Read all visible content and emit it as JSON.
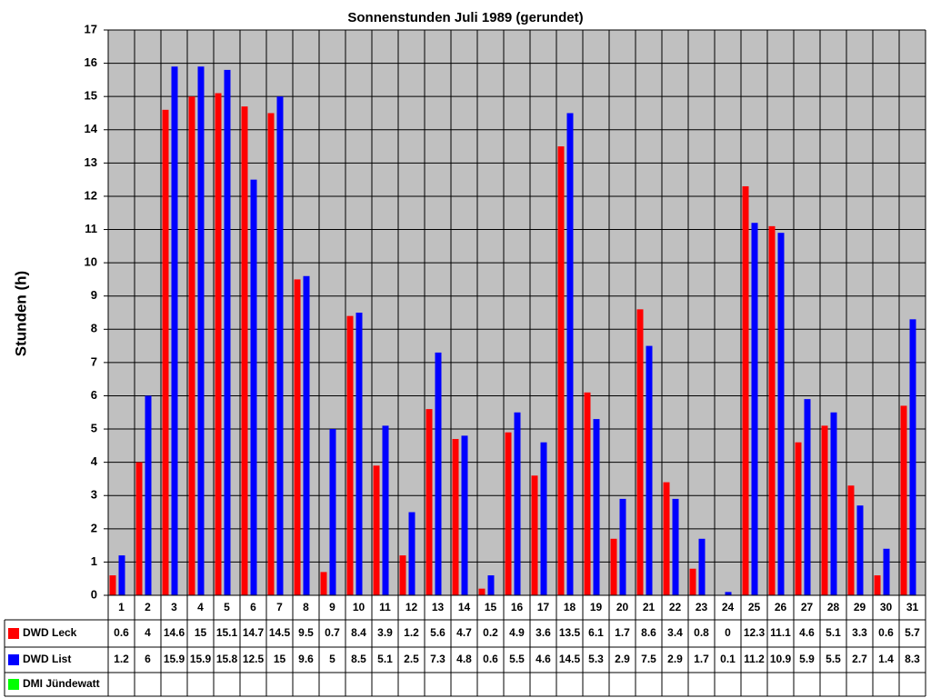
{
  "chart_data": {
    "type": "bar",
    "title": "Sonnenstunden Juli 1989 (gerundet)",
    "y_label": "Stunden (h)",
    "categories": [
      "1",
      "2",
      "3",
      "4",
      "5",
      "6",
      "7",
      "8",
      "9",
      "10",
      "11",
      "12",
      "13",
      "14",
      "15",
      "16",
      "17",
      "18",
      "19",
      "20",
      "21",
      "22",
      "23",
      "24",
      "25",
      "26",
      "27",
      "28",
      "29",
      "30",
      "31"
    ],
    "series": [
      {
        "name": "DWD Leck",
        "color": "#ff0000",
        "values": [
          0.6,
          4,
          14.6,
          15,
          15.1,
          14.7,
          14.5,
          9.5,
          0.7,
          8.4,
          3.9,
          1.2,
          5.6,
          4.7,
          0.2,
          4.9,
          3.6,
          13.5,
          6.1,
          1.7,
          8.6,
          3.4,
          0.8,
          0,
          12.3,
          11.1,
          4.6,
          5.1,
          3.3,
          0.6,
          5.7
        ]
      },
      {
        "name": "DWD List",
        "color": "#0000ff",
        "values": [
          1.2,
          6,
          15.9,
          15.9,
          15.8,
          12.5,
          15,
          9.6,
          5,
          8.5,
          5.1,
          2.5,
          7.3,
          4.8,
          0.6,
          5.5,
          4.6,
          14.5,
          5.3,
          2.9,
          7.5,
          2.9,
          1.7,
          0.1,
          11.2,
          10.9,
          5.9,
          5.5,
          2.7,
          1.4,
          8.3
        ]
      },
      {
        "name": "DMI Jündewatt",
        "color": "#00ff00",
        "values": [
          null,
          null,
          null,
          null,
          null,
          null,
          null,
          null,
          null,
          null,
          null,
          null,
          null,
          null,
          null,
          null,
          null,
          null,
          null,
          null,
          null,
          null,
          null,
          null,
          null,
          null,
          null,
          null,
          null,
          null,
          null
        ]
      }
    ],
    "ylim": [
      0,
      17
    ],
    "yticks": [
      0,
      1,
      2,
      3,
      4,
      5,
      6,
      7,
      8,
      9,
      10,
      11,
      12,
      13,
      14,
      15,
      16,
      17
    ],
    "grid": true,
    "background": "#c0c0c0"
  }
}
